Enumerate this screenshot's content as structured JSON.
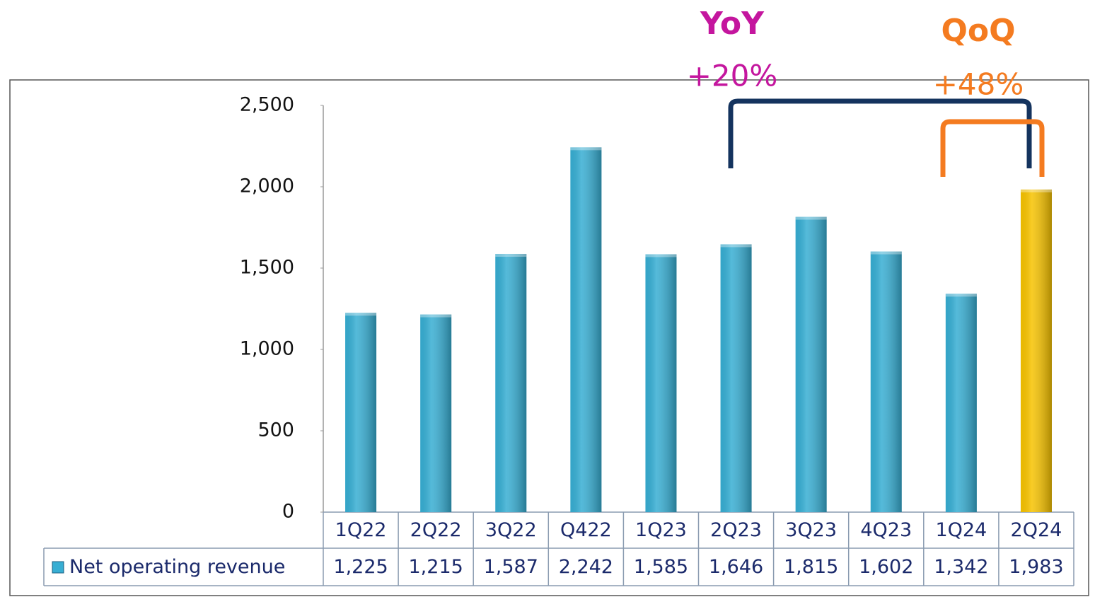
{
  "chart_data": {
    "type": "bar",
    "categories": [
      "1Q22",
      "2Q22",
      "3Q22",
      "Q422",
      "1Q23",
      "2Q23",
      "3Q23",
      "4Q23",
      "1Q24",
      "2Q24"
    ],
    "series": [
      {
        "name": "Net operating revenue",
        "color": "#37aed3",
        "colors": [
          "#37aed3",
          "#37aed3",
          "#37aed3",
          "#37aed3",
          "#37aed3",
          "#37aed3",
          "#37aed3",
          "#37aed3",
          "#37aed3",
          "#f7c300"
        ],
        "values": [
          1225,
          1215,
          1587,
          2242,
          1585,
          1646,
          1815,
          1602,
          1342,
          1983
        ],
        "value_labels": [
          "1,225",
          "1,215",
          "1,587",
          "2,242",
          "1,585",
          "1,646",
          "1,815",
          "1,602",
          "1,342",
          "1,983"
        ]
      }
    ],
    "ylim": [
      0,
      2500
    ],
    "yticks": [
      0,
      500,
      {
        "value": 1000,
        "label": "1,000"
      },
      {
        "value": 1500,
        "label": "1,500"
      },
      {
        "value": 2000,
        "label": "2,000"
      },
      {
        "value": 2500,
        "label": "2,500"
      }
    ],
    "annotations": [
      {
        "title": "YoY",
        "text": "+20%",
        "color": "#c4169e"
      },
      {
        "title": "QoQ",
        "text": "+48%",
        "color": "#f47b20"
      }
    ]
  }
}
